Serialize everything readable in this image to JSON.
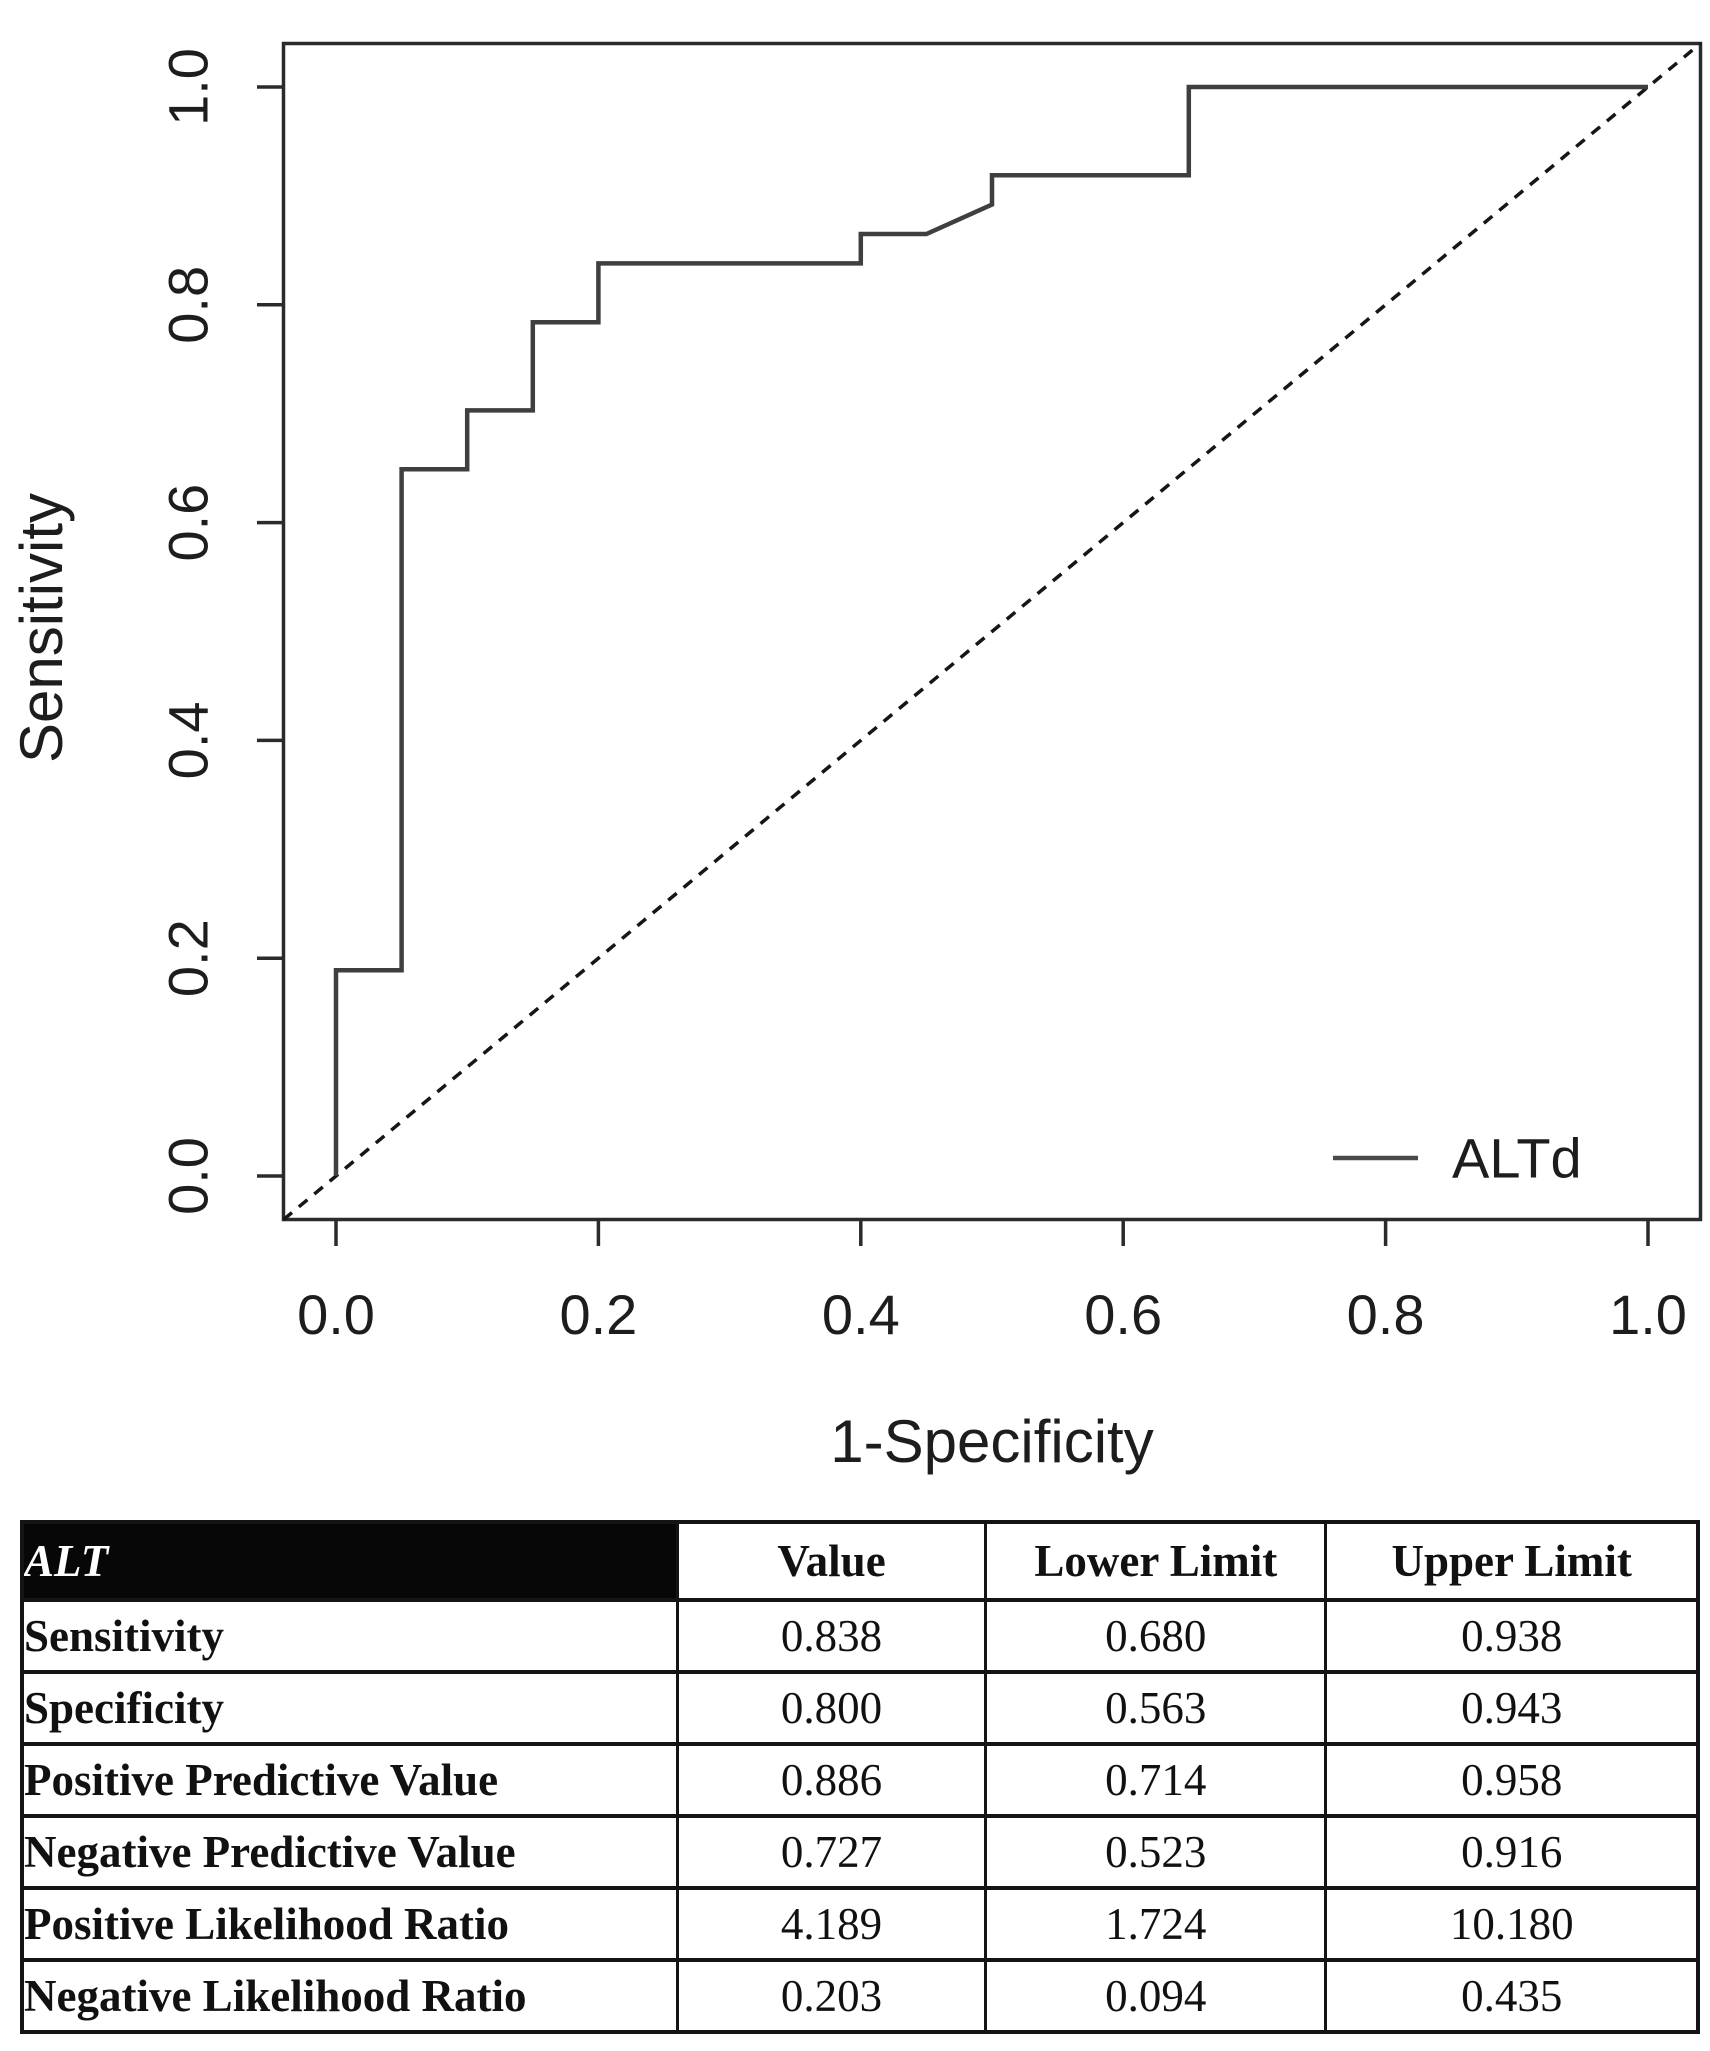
{
  "figure_background": "#ffffff",
  "chart_data": {
    "type": "line",
    "subtype": "roc-step-curve",
    "title": "",
    "xlabel": "1-Specificity",
    "ylabel": "Sensitivity",
    "xlim": [
      -0.04,
      1.04
    ],
    "ylim": [
      -0.04,
      1.04
    ],
    "grid": false,
    "x_tick_labels": [
      "0.0",
      "0.2",
      "0.4",
      "0.6",
      "0.8",
      "1.0"
    ],
    "y_tick_labels": [
      "0.0",
      "0.2",
      "0.4",
      "0.6",
      "0.8",
      "1.0"
    ],
    "legend": {
      "position": "bottom-right-inside",
      "entries": [
        {
          "label": "ALTd",
          "line_style": "solid",
          "color": "#4a4a4a"
        }
      ]
    },
    "series": [
      {
        "name": "ALTd",
        "style": "solid-step",
        "color": "#3f3f3f",
        "points": [
          [
            0.0,
            0.0
          ],
          [
            0.0,
            0.189
          ],
          [
            0.05,
            0.189
          ],
          [
            0.05,
            0.649
          ],
          [
            0.1,
            0.649
          ],
          [
            0.1,
            0.703
          ],
          [
            0.15,
            0.703
          ],
          [
            0.15,
            0.784
          ],
          [
            0.2,
            0.784
          ],
          [
            0.2,
            0.838
          ],
          [
            0.4,
            0.838
          ],
          [
            0.4,
            0.865
          ],
          [
            0.45,
            0.865
          ],
          [
            0.5,
            0.892
          ],
          [
            0.5,
            0.919
          ],
          [
            0.65,
            0.919
          ],
          [
            0.65,
            1.0
          ],
          [
            1.0,
            1.0
          ]
        ]
      },
      {
        "name": "chance-diagonal",
        "style": "dashed",
        "color": "#161616",
        "points": [
          [
            -0.04,
            -0.04
          ],
          [
            1.04,
            1.04
          ]
        ]
      }
    ]
  },
  "table": {
    "header": {
      "metric": "ALT",
      "value": "Value",
      "lower": "Lower Limit",
      "upper": "Upper Limit"
    },
    "rows": [
      {
        "label": "Sensitivity",
        "value": "0.838",
        "lower": "0.680",
        "upper": "0.938"
      },
      {
        "label": "Specificity",
        "value": "0.800",
        "lower": "0.563",
        "upper": "0.943"
      },
      {
        "label": "Positive Predictive Value",
        "value": "0.886",
        "lower": "0.714",
        "upper": "0.958"
      },
      {
        "label": "Negative Predictive Value",
        "value": "0.727",
        "lower": "0.523",
        "upper": "0.916"
      },
      {
        "label": "Positive Likelihood Ratio",
        "value": "4.189",
        "lower": "1.724",
        "upper": "10.180"
      },
      {
        "label": "Negative Likelihood Ratio",
        "value": "0.203",
        "lower": "0.094",
        "upper": "0.435"
      }
    ]
  },
  "colors": {
    "box_stroke": "#2b2b2b",
    "tick_stroke": "#2b2b2b",
    "roc_line": "#3f3f3f",
    "diagonal_line": "#161616",
    "text": "#1d1d1d",
    "table_border": "#141414",
    "table_header_bg": "#070707",
    "table_header_fg": "#ffffff"
  }
}
